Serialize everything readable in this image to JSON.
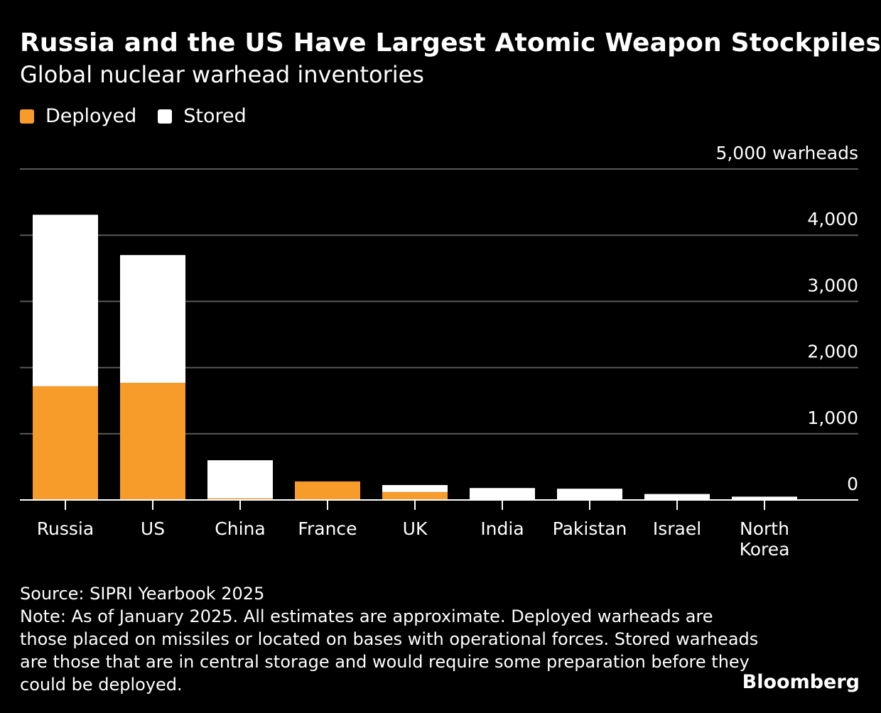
{
  "header": {
    "title": "Russia and the US Have Largest Atomic Weapon Stockpiles",
    "subtitle": "Global nuclear warhead inventories"
  },
  "legend": {
    "items": [
      {
        "label": "Deployed",
        "color": "#F79C2A"
      },
      {
        "label": "Stored",
        "color": "#FFFFFF"
      }
    ]
  },
  "chart_data": {
    "type": "bar",
    "stacked": true,
    "categories": [
      "Russia",
      "US",
      "China",
      "France",
      "UK",
      "India",
      "Pakistan",
      "Israel",
      "North Korea"
    ],
    "series": [
      {
        "name": "Deployed",
        "color": "#F79C2A",
        "values": [
          1718,
          1770,
          24,
          280,
          120,
          0,
          0,
          0,
          0
        ]
      },
      {
        "name": "Stored",
        "color": "#FFFFFF",
        "values": [
          2591,
          1930,
          576,
          0,
          105,
          180,
          170,
          90,
          50
        ]
      }
    ],
    "ylim": [
      0,
      5000
    ],
    "yticks": [
      0,
      1000,
      2000,
      3000,
      4000,
      5000
    ],
    "ytick_labels": [
      "0",
      "1,000",
      "2,000",
      "3,000",
      "4,000",
      "5,000 warheads"
    ],
    "grid": true,
    "legend_position": "top-left"
  },
  "footer": {
    "source": "Source: SIPRI Yearbook 2025",
    "note": "Note: As of January 2025. All estimates are approximate. Deployed warheads are those placed on missiles or located on bases with operational forces. Stored warheads are those that are in central storage and would require some preparation before they could be deployed.",
    "brand": "Bloomberg"
  }
}
